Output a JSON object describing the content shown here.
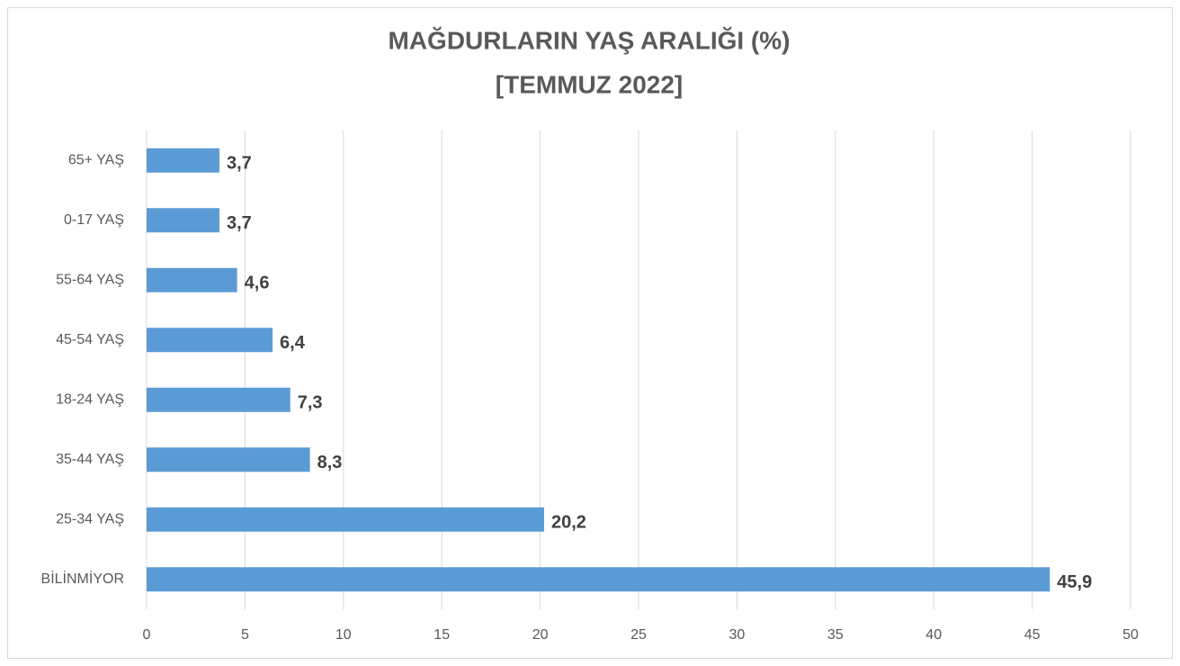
{
  "chart_data": {
    "type": "barh",
    "title": "MAĞDURLARIN YAŞ ARALIĞI (%)",
    "subtitle": "[TEMMUZ 2022]",
    "categories": [
      "65+ YAŞ",
      "0-17 YAŞ",
      "55-64 YAŞ",
      "45-54 YAŞ",
      "18-24 YAŞ",
      "35-44 YAŞ",
      "25-34 YAŞ",
      "BİLİNMİYOR"
    ],
    "values": [
      3.7,
      3.7,
      4.6,
      6.4,
      7.3,
      8.3,
      20.2,
      45.9
    ],
    "value_labels": [
      "3,7",
      "3,7",
      "4,6",
      "6,4",
      "7,3",
      "8,3",
      "20,2",
      "45,9"
    ],
    "color": "#5b9bd5",
    "xlim": [
      0,
      50
    ],
    "xticks": [
      0,
      5,
      10,
      15,
      20,
      25,
      30,
      35,
      40,
      45,
      50
    ],
    "grid": true
  }
}
